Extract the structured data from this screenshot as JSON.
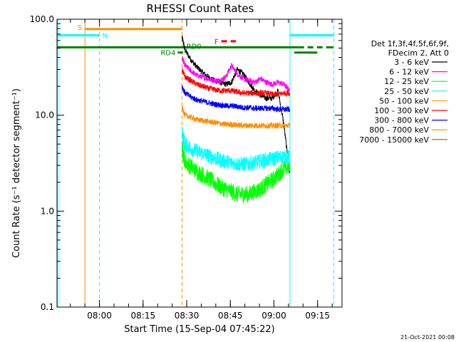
{
  "chart_data": {
    "type": "line",
    "title": "RHESSI Count Rates",
    "xlabel": "Start Time (15-Sep-04 07:45:22)",
    "ylabel": "Count Rate (s⁻¹ detector segment⁻¹)",
    "y_scale": "log",
    "ylim": [
      0.1,
      100.0
    ],
    "x_unit": "minutes after 07:45:22",
    "xlim": [
      0,
      98
    ],
    "x_ticks": [
      {
        "label": "08:00",
        "value": 14.6
      },
      {
        "label": "08:15",
        "value": 29.6
      },
      {
        "label": "08:30",
        "value": 44.6
      },
      {
        "label": "08:45",
        "value": 59.6
      },
      {
        "label": "09:00",
        "value": 74.6
      },
      {
        "label": "09:15",
        "value": 89.6
      }
    ],
    "y_ticks": [
      {
        "label": "0.1",
        "value": 0.1
      },
      {
        "label": "1.0",
        "value": 1.0
      },
      {
        "label": "10.0",
        "value": 10.0
      },
      {
        "label": "100.0",
        "value": 100.0
      }
    ],
    "legend_header": [
      "Det 1f,3f,4f,5f,6f,9f,",
      "FDecim 2, Att 0"
    ],
    "legend_placement": "right",
    "series": [
      {
        "name": "3 - 6 keV",
        "color": "#000000",
        "x": [
          43,
          44,
          46,
          48,
          50,
          52,
          54,
          56,
          58,
          60,
          62,
          64,
          66,
          68,
          70,
          72,
          74,
          76,
          78,
          80
        ],
        "values": [
          65,
          48,
          38,
          32,
          28,
          25,
          23,
          22,
          21,
          22,
          30,
          27,
          22,
          18,
          16,
          15,
          15,
          18,
          8,
          2.5
        ]
      },
      {
        "name": "6 - 12 keV",
        "color": "#ff00ff",
        "x": [
          43,
          44,
          46,
          48,
          50,
          52,
          54,
          56,
          58,
          60,
          62,
          64,
          66,
          68,
          70,
          72,
          74,
          76,
          78,
          80
        ],
        "values": [
          40,
          33,
          29,
          26,
          25,
          24,
          23,
          23,
          25,
          33,
          27,
          24,
          23,
          22,
          24,
          22,
          21,
          22,
          21,
          18
        ]
      },
      {
        "name": "12 - 25 keV",
        "color": "#00ff00",
        "x": [
          43,
          44,
          46,
          48,
          50,
          52,
          54,
          56,
          58,
          60,
          62,
          64,
          66,
          68,
          70,
          72,
          74,
          76,
          78,
          80
        ],
        "values": [
          4.5,
          3.3,
          2.9,
          2.6,
          2.4,
          2.2,
          2.0,
          1.8,
          1.7,
          1.6,
          1.5,
          1.5,
          1.5,
          1.6,
          1.7,
          1.9,
          2.1,
          2.4,
          2.8,
          2.9
        ]
      },
      {
        "name": "25 - 50 keV",
        "color": "#00ffff",
        "x": [
          43,
          44,
          46,
          48,
          50,
          52,
          54,
          56,
          58,
          60,
          62,
          64,
          66,
          68,
          70,
          72,
          74,
          76,
          78,
          80
        ],
        "values": [
          6.5,
          5.0,
          4.5,
          4.2,
          4.0,
          3.8,
          3.6,
          3.4,
          3.3,
          3.2,
          3.1,
          3.1,
          3.1,
          3.2,
          3.3,
          3.4,
          3.5,
          3.6,
          3.7,
          3.6
        ]
      },
      {
        "name": "50 - 100 keV",
        "color": "#ffaa00",
        "x": [],
        "values": []
      },
      {
        "name": "100 - 300 keV",
        "color": "#ff0000",
        "x": [
          43,
          44,
          46,
          48,
          50,
          52,
          54,
          56,
          58,
          60,
          62,
          64,
          66,
          68,
          70,
          72,
          74,
          76,
          78,
          80
        ],
        "values": [
          30,
          25,
          23,
          21,
          20,
          19,
          18.5,
          18,
          18,
          18,
          17.5,
          17,
          17,
          17,
          17,
          17,
          16.5,
          16.5,
          17,
          17
        ]
      },
      {
        "name": "300 - 800 keV",
        "color": "#0000ff",
        "x": [
          43,
          44,
          46,
          48,
          50,
          52,
          54,
          56,
          58,
          60,
          62,
          64,
          66,
          68,
          70,
          72,
          74,
          76,
          78,
          80
        ],
        "values": [
          20,
          17,
          15.5,
          14.5,
          14,
          13.5,
          13,
          12.8,
          12.5,
          12.5,
          12.3,
          12,
          12,
          11.8,
          11.8,
          11.8,
          11.8,
          11.5,
          11.5,
          11.5
        ]
      },
      {
        "name": "800 - 7000 keV",
        "color": "#ff8c00",
        "x": [
          43,
          44,
          46,
          48,
          50,
          52,
          54,
          56,
          58,
          60,
          62,
          64,
          66,
          68,
          70,
          72,
          74,
          76,
          78,
          80
        ],
        "values": [
          12,
          10,
          9.5,
          9.0,
          8.8,
          8.6,
          8.4,
          8.2,
          8.0,
          8.0,
          7.9,
          7.8,
          7.8,
          7.8,
          7.8,
          7.8,
          7.8,
          7.8,
          7.8,
          7.8
        ]
      },
      {
        "name": "7000 - 15000 keV",
        "color": "#996600",
        "x": [],
        "values": []
      }
    ],
    "annotations": [
      {
        "label": "S",
        "color": "#ff8c00",
        "y": 79,
        "x_start": 9.6,
        "x_end": 43.0,
        "style": "solid"
      },
      {
        "label": "N",
        "color": "#00ffff",
        "y": 68,
        "x_start": 0,
        "x_end": 14.6,
        "style": "solid"
      },
      {
        "label": "",
        "color": "#00ffff",
        "y": 68,
        "x_start": 80,
        "x_end": 95.2,
        "style": "solid"
      },
      {
        "label": "",
        "color": "#008000",
        "y": 51,
        "x_start": 0,
        "x_end": 83.0,
        "style": "solid"
      },
      {
        "label": "",
        "color": "#008000",
        "y": 51,
        "x_start": 83.0,
        "x_end": 93.5,
        "style": "dashed"
      },
      {
        "label": "",
        "color": "#008000",
        "y": 51,
        "x_start": 93.5,
        "x_end": 95.0,
        "style": "solid"
      },
      {
        "label": "RD4",
        "color": "#008000",
        "y": 45,
        "x_start": 41.5,
        "x_end": 43.3,
        "style": "solid"
      },
      {
        "label": "",
        "color": "#008000",
        "y": 45,
        "x_start": 81.6,
        "x_end": 89.5,
        "style": "solid"
      },
      {
        "label": "F",
        "color": "#ff0000",
        "y": 59,
        "x_start": 56.5,
        "x_end": 61.5,
        "style": "dashed"
      }
    ],
    "text_labels": [
      {
        "text": "RD0",
        "color": "#008000",
        "x": 44.5,
        "y": 51
      }
    ],
    "vertical_lines": [
      {
        "x": 9.6,
        "color": "#ff8c00",
        "style": "solid"
      },
      {
        "x": 14.6,
        "color": "#00ffff",
        "style": "dashed"
      },
      {
        "x": 43.0,
        "color": "#ff8c00",
        "style": "dashed"
      },
      {
        "x": 80.1,
        "color": "#00ffff",
        "style": "solid"
      },
      {
        "x": 95.2,
        "color": "#00ffff",
        "style": "dashed"
      },
      {
        "x": 0.3,
        "color": "#00ffff",
        "style": "solid"
      }
    ],
    "grid": false
  },
  "footer": {
    "date_stamp": "21-Oct-2021 00:08"
  }
}
